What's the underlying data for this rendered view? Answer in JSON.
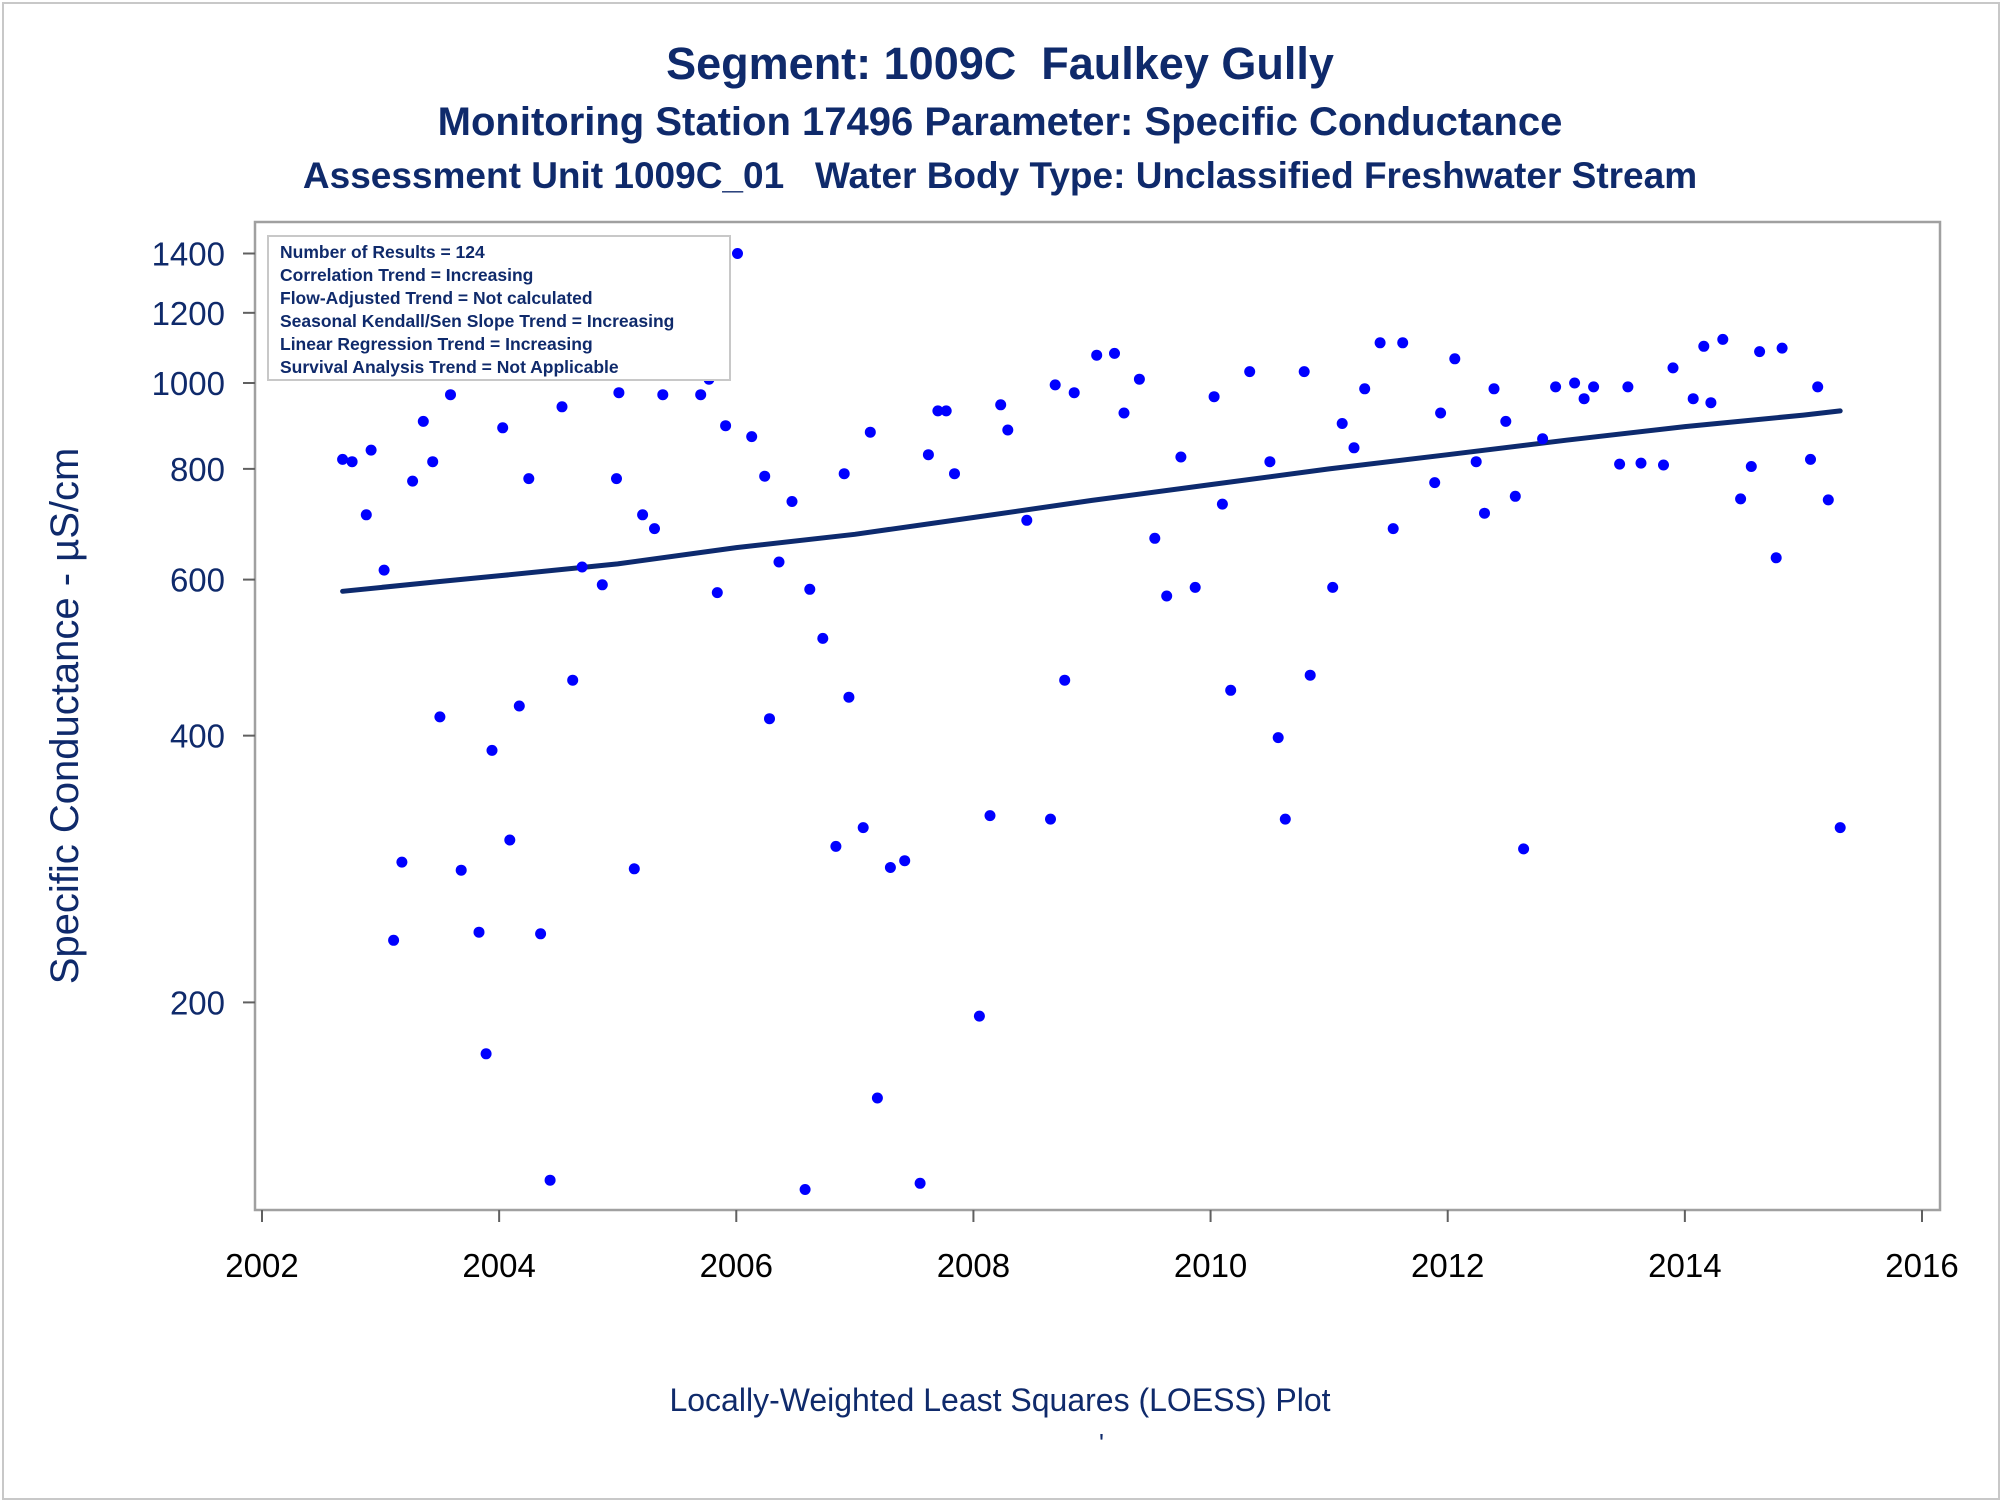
{
  "titles": {
    "line1": "Segment: 1009C  Faulkey Gully",
    "line2": "Monitoring Station 17496 Parameter: Specific Conductance",
    "line3": "Assessment Unit 1009C_01   Water Body Type: Unclassified Freshwater Stream"
  },
  "footnote": "Locally-Weighted Least Squares (LOESS) Plot",
  "footnote_mark": "'",
  "colors": {
    "text": "#0f2a6b",
    "points": "#0000ff",
    "trend": "#0d2a6e",
    "frame": "#a0a0a0"
  },
  "chart_data": {
    "type": "scatter",
    "ylabel": "Specific Conductance -  µS/cm",
    "xlabel": "",
    "y_scale": "log",
    "xlim": [
      2002,
      2016
    ],
    "ylim": [
      120,
      1450
    ],
    "x_ticks": [
      2002,
      2004,
      2006,
      2008,
      2010,
      2012,
      2014,
      2016
    ],
    "y_ticks": [
      200,
      400,
      600,
      800,
      1000,
      1200,
      1400
    ],
    "grid": false,
    "legend_placement": "top-left",
    "annotations": [
      "Number of Results = 124",
      "Correlation Trend = Increasing",
      "Flow-Adjusted Trend = Not calculated",
      "Seasonal Kendall/Sen Slope Trend = Increasing",
      "Linear Regression Trend = Increasing",
      "Survival Analysis Trend = Not Applicable"
    ],
    "series": [
      {
        "type": "scatter",
        "points": [
          [
            2002.68,
            820
          ],
          [
            2002.76,
            815
          ],
          [
            2002.88,
            710
          ],
          [
            2002.92,
            840
          ],
          [
            2003.03,
            615
          ],
          [
            2003.11,
            235
          ],
          [
            2003.18,
            288
          ],
          [
            2003.27,
            775
          ],
          [
            2003.36,
            905
          ],
          [
            2003.44,
            815
          ],
          [
            2003.5,
            420
          ],
          [
            2003.59,
            970
          ],
          [
            2003.68,
            282
          ],
          [
            2003.83,
            240
          ],
          [
            2003.89,
            175
          ],
          [
            2003.94,
            385
          ],
          [
            2004.03,
            890
          ],
          [
            2004.09,
            305
          ],
          [
            2004.17,
            432
          ],
          [
            2004.25,
            780
          ],
          [
            2004.35,
            239
          ],
          [
            2004.43,
            126
          ],
          [
            2004.53,
            940
          ],
          [
            2004.62,
            462
          ],
          [
            2004.7,
            620
          ],
          [
            2004.82,
            1025
          ],
          [
            2004.87,
            592
          ],
          [
            2004.99,
            780
          ],
          [
            2005.01,
            975
          ],
          [
            2005.14,
            283
          ],
          [
            2005.21,
            710
          ],
          [
            2005.31,
            685
          ],
          [
            2005.38,
            970
          ],
          [
            2005.7,
            970
          ],
          [
            2005.77,
            1010
          ],
          [
            2005.84,
            580
          ],
          [
            2005.91,
            895
          ],
          [
            2006.01,
            1400
          ],
          [
            2006.13,
            870
          ],
          [
            2006.24,
            785
          ],
          [
            2006.28,
            418
          ],
          [
            2006.36,
            628
          ],
          [
            2006.47,
            735
          ],
          [
            2006.58,
            123
          ],
          [
            2006.62,
            585
          ],
          [
            2006.73,
            515
          ],
          [
            2006.84,
            300
          ],
          [
            2006.91,
            790
          ],
          [
            2006.95,
            442
          ],
          [
            2007.07,
            315
          ],
          [
            2007.13,
            880
          ],
          [
            2007.19,
            156
          ],
          [
            2007.3,
            284
          ],
          [
            2007.42,
            289
          ],
          [
            2007.55,
            125
          ],
          [
            2007.62,
            830
          ],
          [
            2007.7,
            930
          ],
          [
            2007.77,
            930
          ],
          [
            2007.84,
            790
          ],
          [
            2008.05,
            193
          ],
          [
            2008.14,
            325
          ],
          [
            2008.23,
            945
          ],
          [
            2008.29,
            885
          ],
          [
            2008.45,
            700
          ],
          [
            2008.65,
            322
          ],
          [
            2008.69,
            995
          ],
          [
            2008.77,
            462
          ],
          [
            2008.85,
            975
          ],
          [
            2009.04,
            1075
          ],
          [
            2009.19,
            1080
          ],
          [
            2009.27,
            925
          ],
          [
            2009.4,
            1010
          ],
          [
            2009.53,
            668
          ],
          [
            2009.63,
            575
          ],
          [
            2009.75,
            825
          ],
          [
            2009.87,
            588
          ],
          [
            2010.03,
            965
          ],
          [
            2010.1,
            730
          ],
          [
            2010.17,
            450
          ],
          [
            2010.33,
            1030
          ],
          [
            2010.5,
            815
          ],
          [
            2010.57,
            398
          ],
          [
            2010.63,
            322
          ],
          [
            2010.79,
            1030
          ],
          [
            2010.84,
            468
          ],
          [
            2011.03,
            588
          ],
          [
            2011.11,
            900
          ],
          [
            2011.21,
            845
          ],
          [
            2011.3,
            985
          ],
          [
            2011.43,
            1110
          ],
          [
            2011.54,
            685
          ],
          [
            2011.62,
            1110
          ],
          [
            2011.89,
            772
          ],
          [
            2011.94,
            925
          ],
          [
            2012.06,
            1065
          ],
          [
            2012.24,
            815
          ],
          [
            2012.31,
            713
          ],
          [
            2012.39,
            985
          ],
          [
            2012.49,
            905
          ],
          [
            2012.57,
            745
          ],
          [
            2012.64,
            298
          ],
          [
            2012.8,
            865
          ],
          [
            2012.91,
            990
          ],
          [
            2013.07,
            1000
          ],
          [
            2013.15,
            960
          ],
          [
            2013.23,
            990
          ],
          [
            2013.45,
            810
          ],
          [
            2013.52,
            990
          ],
          [
            2013.63,
            812
          ],
          [
            2013.82,
            808
          ],
          [
            2013.9,
            1040
          ],
          [
            2014.07,
            960
          ],
          [
            2014.16,
            1100
          ],
          [
            2014.22,
            950
          ],
          [
            2014.32,
            1120
          ],
          [
            2014.47,
            740
          ],
          [
            2014.56,
            805
          ],
          [
            2014.63,
            1085
          ],
          [
            2014.77,
            635
          ],
          [
            2014.82,
            1095
          ],
          [
            2015.06,
            820
          ],
          [
            2015.12,
            990
          ],
          [
            2015.21,
            738
          ],
          [
            2015.31,
            315
          ]
        ]
      },
      {
        "type": "line",
        "points": [
          [
            2002.68,
            582
          ],
          [
            2003.5,
            597
          ],
          [
            2004.0,
            606
          ],
          [
            2005.0,
            625
          ],
          [
            2006.0,
            652
          ],
          [
            2007.0,
            675
          ],
          [
            2008.0,
            705
          ],
          [
            2009.0,
            737
          ],
          [
            2010.0,
            768
          ],
          [
            2011.0,
            800
          ],
          [
            2012.0,
            830
          ],
          [
            2013.0,
            862
          ],
          [
            2014.0,
            893
          ],
          [
            2015.0,
            920
          ],
          [
            2015.31,
            930
          ]
        ]
      }
    ]
  }
}
